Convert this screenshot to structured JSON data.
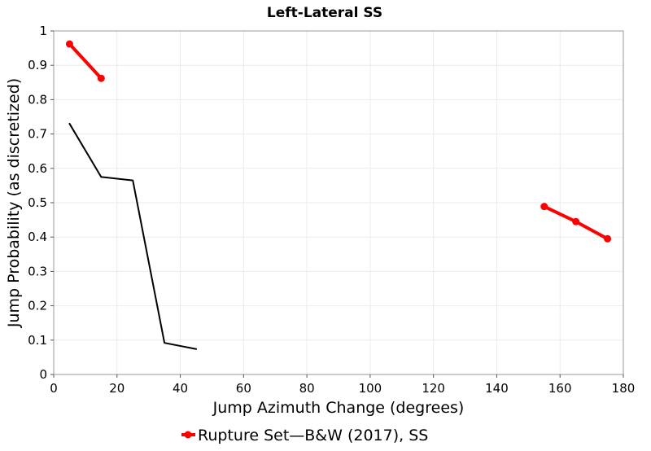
{
  "chart_data": {
    "type": "line",
    "title": "Left-Lateral SS",
    "xlabel": "Jump Azimuth Change (degrees)",
    "ylabel": "Jump Probability (as discretized)",
    "xlim": [
      0,
      180
    ],
    "ylim": [
      0,
      1
    ],
    "xticks": [
      0,
      20,
      40,
      60,
      80,
      100,
      120,
      140,
      160,
      180
    ],
    "yticks": [
      0,
      0.1,
      0.2,
      0.3,
      0.4,
      0.5,
      0.6,
      0.7,
      0.8,
      0.9,
      1
    ],
    "ytick_labels": [
      "0",
      "0.1",
      "0.2",
      "0.3",
      "0.4",
      "0.5",
      "0.6",
      "0.7",
      "0.8",
      "0.9",
      "1"
    ],
    "grid": true,
    "legend_position": "bottom-center",
    "series": [
      {
        "name": "Rupture Set",
        "color": "#ff0000",
        "markers": true,
        "segments": [
          [
            {
              "x": 5,
              "y": 0.962
            },
            {
              "x": 15,
              "y": 0.862
            }
          ],
          [
            {
              "x": 155,
              "y": 0.489
            },
            {
              "x": 165,
              "y": 0.445
            },
            {
              "x": 175,
              "y": 0.395
            }
          ]
        ]
      },
      {
        "name": "B&W (2017), SS",
        "color": "#000000",
        "markers": false,
        "segments": [
          [
            {
              "x": 5,
              "y": 0.73
            },
            {
              "x": 15,
              "y": 0.575
            },
            {
              "x": 25,
              "y": 0.565
            },
            {
              "x": 35,
              "y": 0.092
            },
            {
              "x": 45,
              "y": 0.074
            }
          ]
        ]
      }
    ],
    "legend_text": "Rupture Set—B&W (2017), SS"
  }
}
